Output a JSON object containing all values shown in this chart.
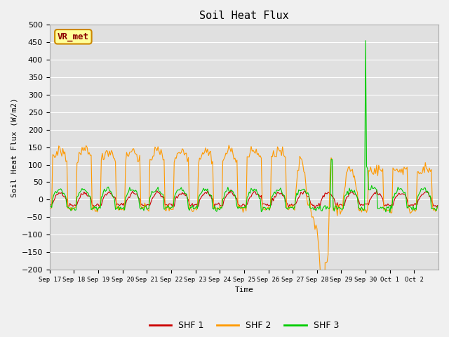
{
  "title": "Soil Heat Flux",
  "ylabel": "Soil Heat Flux (W/m2)",
  "xlabel": "Time",
  "ylim": [
    -200,
    500
  ],
  "yticks": [
    -200,
    -150,
    -100,
    -50,
    0,
    50,
    100,
    150,
    200,
    250,
    300,
    350,
    400,
    450,
    500
  ],
  "xtick_labels": [
    "Sep 17",
    "Sep 18",
    "Sep 19",
    "Sep 20",
    "Sep 21",
    "Sep 22",
    "Sep 23",
    "Sep 24",
    "Sep 25",
    "Sep 26",
    "Sep 27",
    "Sep 28",
    "Sep 29",
    "Sep 30",
    "Oct 1",
    "Oct 2"
  ],
  "colors": {
    "shf1": "#cc0000",
    "shf2": "#ff9900",
    "shf3": "#00cc00"
  },
  "legend_label": "VR_met",
  "bg_color": "#e0e0e0",
  "grid_color": "#ffffff",
  "fig_bg": "#f0f0f0"
}
